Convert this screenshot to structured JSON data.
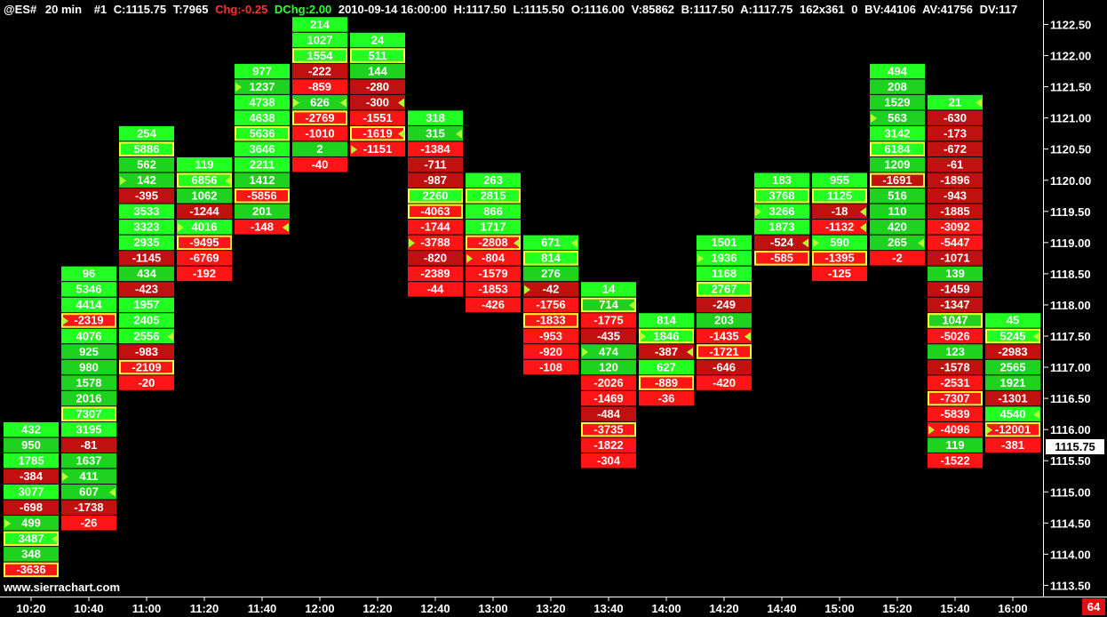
{
  "header": {
    "symbol": "@ES#",
    "interval": "20 min",
    "bar_no": "#1",
    "close": "C:1115.75",
    "ticks": "T:7965",
    "chg": "Chg:-0.25",
    "dchg": "DChg:2.00",
    "datetime": "2010-09-14 16:00:00",
    "high": "H:1117.50",
    "low": "L:1115.50",
    "open": "O:1116.00",
    "volume": "V:85862",
    "bid": "B:1117.50",
    "ask": "A:1117.75",
    "dims": "162x361",
    "zero": "0",
    "bv": "BV:44106",
    "av": "AV:41756",
    "dv": "DV:117"
  },
  "watermark": "www.sierrachart.com",
  "price_marker": "1115.75",
  "corner_badge": "64",
  "colors": {
    "background": "#000000",
    "positive": "#1fd21f",
    "positive_strong": "#22ff22",
    "negative": "#c01010",
    "negative_strong": "#ff1515",
    "highlight_border": "#ffff33",
    "triangle": "#b4ff30",
    "header_red": "#ff3030",
    "header_green": "#30ff30",
    "badge": "#e01010"
  },
  "chart_data": {
    "type": "table",
    "description_labels": "Per-bar delta (ask volume minus bid volume) at each price level",
    "y_axis": {
      "ticks": [
        "1122.50",
        "1122.00",
        "1121.50",
        "1121.00",
        "1120.50",
        "1120.00",
        "1119.50",
        "1119.00",
        "1118.50",
        "1118.00",
        "1117.50",
        "1117.00",
        "1116.50",
        "1116.00",
        "1115.50",
        "1115.00",
        "1114.50",
        "1114.00",
        "1113.50"
      ],
      "range": [
        1113.5,
        1122.75
      ],
      "tick_size": 0.25
    },
    "x_axis": {
      "ticks": [
        "10:20",
        "10:40",
        "11:00",
        "11:20",
        "11:40",
        "12:00",
        "12:20",
        "12:40",
        "13:00",
        "13:20",
        "13:40",
        "14:00",
        "14:20",
        "14:40",
        "15:00",
        "15:20",
        "15:40",
        "16:00"
      ]
    },
    "bars": [
      {
        "time": "10:20",
        "top": 1116.0,
        "values": [
          432,
          950,
          1785,
          -384,
          3077,
          -698,
          499,
          3487,
          348,
          -3636
        ],
        "highlights": [
          7,
          9
        ],
        "triangles": [
          [
            6,
            "r"
          ],
          [
            7,
            "l"
          ]
        ]
      },
      {
        "time": "10:40",
        "top": 1118.5,
        "values": [
          96,
          5346,
          4414,
          -2319,
          4076,
          925,
          980,
          1578,
          2016,
          7307,
          3195,
          -81,
          1637,
          411,
          607,
          -1738,
          -26
        ],
        "highlights": [
          3,
          9
        ],
        "triangles": [
          [
            3,
            "r"
          ],
          [
            13,
            "r"
          ],
          [
            14,
            "l"
          ]
        ]
      },
      {
        "time": "11:00",
        "top": 1120.75,
        "values": [
          254,
          5886,
          562,
          142,
          -395,
          3533,
          3323,
          2935,
          -1145,
          434,
          -423,
          1957,
          2405,
          2556,
          -983,
          -2109,
          -20
        ],
        "highlights": [
          1,
          15
        ],
        "triangles": [
          [
            3,
            "r"
          ],
          [
            13,
            "l"
          ]
        ]
      },
      {
        "time": "11:20",
        "top": 1120.25,
        "values": [
          119,
          6856,
          1062,
          -1244,
          4016,
          -9495,
          -6769,
          -192
        ],
        "highlights": [
          1,
          5
        ],
        "triangles": [
          [
            1,
            "l"
          ],
          [
            4,
            "r"
          ]
        ]
      },
      {
        "time": "11:40",
        "top": 1121.75,
        "values": [
          977,
          1237,
          4738,
          4638,
          5636,
          3646,
          2211,
          1412,
          -5856,
          201,
          -148
        ],
        "highlights": [
          4,
          8
        ],
        "triangles": [
          [
            1,
            "r"
          ],
          [
            10,
            "l"
          ]
        ]
      },
      {
        "time": "12:00",
        "top": 1122.5,
        "values": [
          214,
          1027,
          1554,
          -222,
          -859,
          626,
          -2769,
          -1010,
          2,
          -40
        ],
        "highlights": [
          2,
          6
        ],
        "triangles": [
          [
            5,
            "l"
          ],
          [
            5,
            "r"
          ]
        ]
      },
      {
        "time": "12:20",
        "top": 1122.25,
        "values": [
          24,
          511,
          144,
          -280,
          -300,
          -1551,
          -1619,
          -1151
        ],
        "highlights": [
          1,
          6
        ],
        "triangles": [
          [
            4,
            "l"
          ],
          [
            6,
            "l"
          ],
          [
            7,
            "r"
          ]
        ]
      },
      {
        "time": "12:40",
        "top": 1121.0,
        "values": [
          318,
          315,
          -1384,
          -711,
          -987,
          2260,
          -4063,
          -1744,
          -3788,
          -820,
          -2389,
          -44
        ],
        "highlights": [
          5,
          6
        ],
        "triangles": [
          [
            1,
            "l"
          ],
          [
            8,
            "r"
          ]
        ]
      },
      {
        "time": "13:00",
        "top": 1120.0,
        "values": [
          263,
          2815,
          866,
          1717,
          -2808,
          -804,
          -1579,
          -1853,
          -426
        ],
        "highlights": [
          1,
          4
        ],
        "triangles": [
          [
            4,
            "l"
          ],
          [
            5,
            "r"
          ]
        ]
      },
      {
        "time": "13:20",
        "top": 1119.0,
        "values": [
          671,
          814,
          276,
          -42,
          -1756,
          -1833,
          -953,
          -920,
          -108
        ],
        "highlights": [
          1,
          5
        ],
        "triangles": [
          [
            0,
            "l"
          ],
          [
            3,
            "r"
          ]
        ]
      },
      {
        "time": "13:40",
        "top": 1118.25,
        "values": [
          14,
          714,
          -1775,
          -435,
          474,
          120,
          -2026,
          -1469,
          -484,
          -3735,
          -1822,
          -304
        ],
        "highlights": [
          1,
          9
        ],
        "triangles": [
          [
            1,
            "l"
          ],
          [
            4,
            "r"
          ]
        ]
      },
      {
        "time": "14:00",
        "top": 1117.75,
        "values": [
          814,
          1846,
          -387,
          627,
          -889,
          -36
        ],
        "highlights": [
          1,
          4
        ],
        "triangles": [
          [
            1,
            "r"
          ],
          [
            2,
            "l"
          ]
        ]
      },
      {
        "time": "14:20",
        "top": 1119.0,
        "values": [
          1501,
          1936,
          1168,
          2767,
          -249,
          203,
          -1435,
          -1721,
          -646,
          -420
        ],
        "highlights": [
          3,
          7
        ],
        "triangles": [
          [
            1,
            "r"
          ],
          [
            6,
            "l"
          ]
        ]
      },
      {
        "time": "14:40",
        "top": 1120.0,
        "values": [
          183,
          3768,
          3266,
          1873,
          -524,
          -585
        ],
        "highlights": [
          1,
          5
        ],
        "triangles": [
          [
            2,
            "r"
          ],
          [
            4,
            "l"
          ]
        ]
      },
      {
        "time": "15:00",
        "top": 1120.0,
        "values": [
          955,
          1125,
          -18,
          -1132,
          590,
          -1395,
          -125
        ],
        "highlights": [
          1,
          5
        ],
        "triangles": [
          [
            2,
            "l"
          ],
          [
            3,
            "l"
          ],
          [
            4,
            "r"
          ]
        ]
      },
      {
        "time": "15:20",
        "top": 1121.75,
        "values": [
          494,
          208,
          1529,
          563,
          3142,
          6184,
          1209,
          -1691,
          516,
          110,
          420,
          265,
          -2
        ],
        "highlights": [
          5,
          7
        ],
        "triangles": [
          [
            3,
            "r"
          ],
          [
            11,
            "l"
          ]
        ]
      },
      {
        "time": "15:40",
        "top": 1121.25,
        "values": [
          21,
          -630,
          -173,
          -672,
          -61,
          -1896,
          -943,
          -1885,
          -3092,
          -5447,
          -1071,
          139,
          -1459,
          -1347,
          1047,
          -5026,
          123,
          -1578,
          -2531,
          -7307,
          -5839,
          -4096,
          119,
          -1522
        ],
        "highlights": [
          14,
          19
        ],
        "triangles": [
          [
            0,
            "l"
          ],
          [
            21,
            "r"
          ]
        ]
      },
      {
        "time": "16:00",
        "top": 1117.75,
        "values": [
          45,
          5245,
          -2983,
          2565,
          1921,
          -1301,
          4540,
          -12001,
          -381
        ],
        "highlights": [
          1,
          7
        ],
        "triangles": [
          [
            1,
            "l"
          ],
          [
            6,
            "l"
          ],
          [
            7,
            "r"
          ]
        ]
      }
    ]
  }
}
